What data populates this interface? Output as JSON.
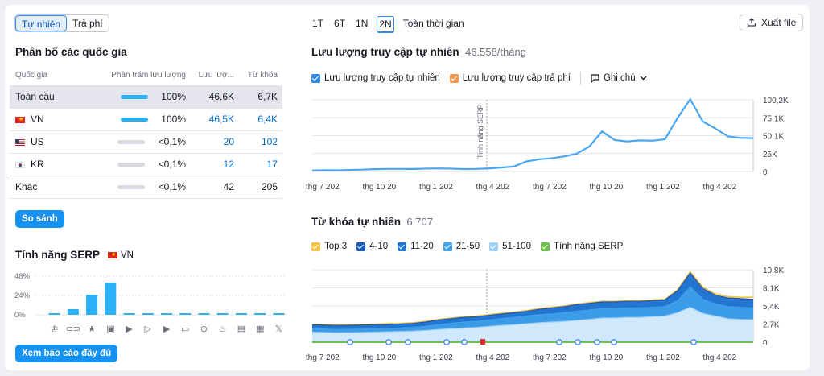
{
  "traffic_toggle": {
    "organic": "Tự nhiên",
    "paid": "Trả phí"
  },
  "country_dist": {
    "title": "Phân bố các quốc gia",
    "columns": [
      "Quốc gia",
      "Phần trăm lưu lượng",
      "Lưu lượ...",
      "Từ khóa"
    ],
    "rows": [
      {
        "country": "Toàn cầu",
        "flag": "",
        "share": "100%",
        "share_level": 1.0,
        "traffic": "46,6K",
        "keywords": "6,7K"
      },
      {
        "country": "VN",
        "flag": "flag-vn",
        "share": "100%",
        "share_level": 1.0,
        "traffic": "46,5K",
        "keywords": "6,4K"
      },
      {
        "country": "US",
        "flag": "flag-us",
        "share": "<0,1%",
        "share_level": 0.0,
        "traffic": "20",
        "keywords": "102"
      },
      {
        "country": "KR",
        "flag": "flag-kr",
        "share": "<0,1%",
        "share_level": 0.0,
        "traffic": "12",
        "keywords": "17"
      },
      {
        "country": "Khác",
        "flag": "",
        "share": "<0,1%",
        "share_level": 0.0,
        "traffic": "42",
        "keywords": "205"
      }
    ],
    "compare_button": "So sánh"
  },
  "serp_features": {
    "title": "Tính năng SERP",
    "country": "VN",
    "report_button": "Xem báo cáo đầy đủ",
    "chart_data": {
      "type": "bar",
      "yticks": [
        "48%",
        "24%",
        "0%"
      ],
      "ylim": [
        0,
        48
      ],
      "categories": [
        "featured-snippet-icon",
        "sitelinks-icon",
        "reviews-icon",
        "image-icon",
        "video-icon",
        "featured-video-icon",
        "video-carousel-icon",
        "faq-icon",
        "local-pack-icon",
        "knowledge-panel-icon",
        "news-icon",
        "jobs-icon",
        "x-icon"
      ],
      "values": [
        1,
        7,
        25,
        40,
        0,
        0,
        0,
        2,
        1,
        1,
        0,
        0,
        0
      ]
    }
  },
  "range_tabs": [
    "1T",
    "6T",
    "1N",
    "2N",
    "Toàn thời gian"
  ],
  "range_selected": "2N",
  "export_button": "Xuất file",
  "traffic_chart": {
    "title": "Lưu lượng truy cập tự nhiên",
    "value": "46.558/tháng",
    "legend": {
      "organic": "Lưu lượng truy cập tự nhiên",
      "paid": "Lưu lượng truy cập trả phí",
      "notes": "Ghi chú"
    },
    "annotation": "Tính năng SERP",
    "chart_data": {
      "type": "line",
      "yticks": [
        "100,2K",
        "75,1K",
        "50,1K",
        "25K",
        "0"
      ],
      "ylim": [
        0,
        100200
      ],
      "xticks": [
        "thg 7 202",
        "thg 10 20",
        "thg 1 202",
        "thg 4 202",
        "thg 7 202",
        "thg 10 20",
        "thg 1 202",
        "thg 4 202"
      ],
      "series": [
        {
          "name": "Lưu lượng truy cập tự nhiên",
          "color": "#4aa6f0",
          "values": [
            1500,
            1800,
            1700,
            2200,
            2600,
            3200,
            3600,
            3600,
            3500,
            4000,
            4300,
            4000,
            3400,
            3600,
            4200,
            5500,
            7000,
            14000,
            17000,
            18500,
            21000,
            25000,
            35000,
            56000,
            44000,
            42000,
            43500,
            43000,
            45000,
            75000,
            101000,
            70000,
            60000,
            49000,
            47000,
            46600
          ]
        }
      ]
    }
  },
  "keyword_chart": {
    "title": "Từ khóa tự nhiên",
    "value": "6.707",
    "legend": [
      {
        "label": "Top 3",
        "color": "#f6c343"
      },
      {
        "label": "4-10",
        "color": "#1759b6"
      },
      {
        "label": "11-20",
        "color": "#1f77d4"
      },
      {
        "label": "21-50",
        "color": "#3fa2ea"
      },
      {
        "label": "51-100",
        "color": "#9dd1f7"
      },
      {
        "label": "Tính năng SERP",
        "color": "#6cc04a"
      }
    ],
    "chart_data": {
      "type": "area",
      "yticks": [
        "10,8K",
        "8,1K",
        "5,4K",
        "2,7K",
        "0"
      ],
      "ylim": [
        0,
        10800
      ],
      "xticks": [
        "thg 7 202",
        "thg 10 20",
        "thg 1 202",
        "thg 4 202",
        "thg 7 202",
        "thg 10 20",
        "thg 1 202",
        "thg 4 202"
      ],
      "series": [
        {
          "name": "51-100",
          "values": [
            1500,
            1450,
            1400,
            1420,
            1450,
            1500,
            1550,
            1600,
            1650,
            1750,
            1900,
            2000,
            2100,
            2200,
            2350,
            2500,
            2600,
            2750,
            2900,
            3000,
            3100,
            3250,
            3400,
            3600,
            3600,
            3700,
            3700,
            3800,
            3900,
            4400,
            5200,
            4300,
            3900,
            3500,
            3400,
            3350
          ]
        },
        {
          "name": "21-50",
          "values": [
            2000,
            1950,
            1900,
            1920,
            1950,
            2000,
            2050,
            2100,
            2200,
            2350,
            2600,
            2800,
            3000,
            3100,
            3300,
            3500,
            3700,
            3900,
            4100,
            4200,
            4400,
            4600,
            4800,
            5000,
            5000,
            5100,
            5100,
            5200,
            5300,
            6200,
            8200,
            6400,
            5700,
            5300,
            5200,
            5100
          ]
        },
        {
          "name": "11-20",
          "values": [
            2400,
            2350,
            2300,
            2320,
            2350,
            2400,
            2450,
            2500,
            2600,
            2800,
            3100,
            3300,
            3500,
            3600,
            3800,
            4000,
            4200,
            4400,
            4700,
            4900,
            5100,
            5400,
            5600,
            5800,
            5800,
            5900,
            5900,
            6000,
            6100,
            7400,
            9800,
            7600,
            6700,
            6300,
            6200,
            6100
          ]
        },
        {
          "name": "4-10",
          "values": [
            2600,
            2550,
            2500,
            2520,
            2550,
            2600,
            2650,
            2700,
            2800,
            3000,
            3300,
            3500,
            3700,
            3800,
            4000,
            4200,
            4400,
            4600,
            4900,
            5100,
            5300,
            5600,
            5800,
            6000,
            6000,
            6100,
            6100,
            6200,
            6300,
            7700,
            10300,
            8000,
            7000,
            6600,
            6500,
            6400
          ]
        },
        {
          "name": "Top 3",
          "values": [
            2700,
            2650,
            2600,
            2620,
            2650,
            2700,
            2750,
            2800,
            2900,
            3100,
            3400,
            3600,
            3800,
            3900,
            4100,
            4300,
            4500,
            4700,
            5000,
            5200,
            5400,
            5700,
            5900,
            6100,
            6100,
            6200,
            6200,
            6300,
            6400,
            7800,
            10500,
            8200,
            7200,
            6800,
            6700,
            6700
          ]
        }
      ]
    }
  }
}
